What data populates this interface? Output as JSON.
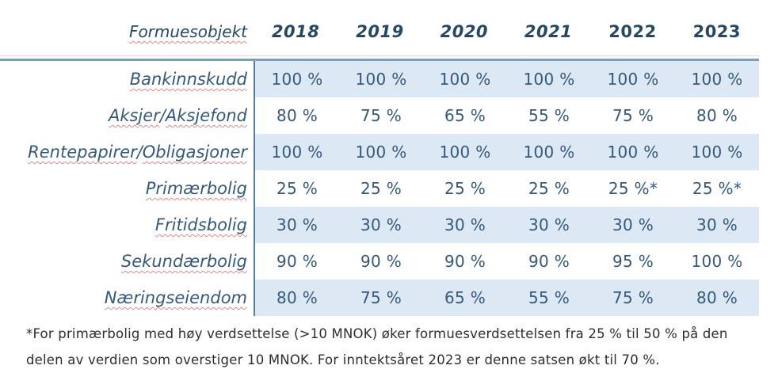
{
  "table": {
    "corner_label": "Formuesobjekt",
    "years": [
      "2018",
      "2019",
      "2020",
      "2021",
      "2022",
      "2023"
    ],
    "rows": [
      {
        "label": "Bankinnskudd",
        "values": [
          "100 %",
          "100 %",
          "100 %",
          "100 %",
          "100 %",
          "100 %"
        ]
      },
      {
        "label": "Aksjer / Aksjefond",
        "values": [
          "80 %",
          "75 %",
          "65 %",
          "55 %",
          "75 %",
          "80 %"
        ]
      },
      {
        "label": "Rentepapirer / Obligasjoner",
        "values": [
          "100 %",
          "100 %",
          "100 %",
          "100 %",
          "100 %",
          "100 %"
        ]
      },
      {
        "label": "Primærbolig",
        "values": [
          "25 %",
          "25 %",
          "25 %",
          "25 %",
          "25 %*",
          "25 %*"
        ]
      },
      {
        "label": "Fritidsbolig",
        "values": [
          "30 %",
          "30 %",
          "30 %",
          "30 %",
          "30 %",
          "30 %"
        ]
      },
      {
        "label": "Sekundærbolig",
        "values": [
          "90 %",
          "90 %",
          "90 %",
          "90 %",
          "95 %",
          "100 %"
        ]
      },
      {
        "label": "Næringseiendom",
        "values": [
          "80 %",
          "75 %",
          "65 %",
          "55 %",
          "75 %",
          "80 %"
        ]
      }
    ]
  },
  "footnote": {
    "line1": "*For primærbolig med høy verdsettelse (>10 MNOK) øker formuesverdsettelsen fra 25 % til 50 % på den",
    "line2": "delen av verdien som overstiger 10 MNOK. For inntektsåret 2023 er denne satsen økt til 70 %."
  },
  "colors": {
    "text": "#35597a",
    "yeartext": "#274860",
    "band": "#dce8f4",
    "rule": "#7b9fb8",
    "divider": "#4d80a3",
    "footnote": "#2d2d2d"
  },
  "chart_data": {
    "type": "table",
    "title": "Formuesobjekt",
    "categories": [
      "2018",
      "2019",
      "2020",
      "2021",
      "2022",
      "2023"
    ],
    "unit": "%",
    "series": [
      {
        "name": "Bankinnskudd",
        "values": [
          100,
          100,
          100,
          100,
          100,
          100
        ]
      },
      {
        "name": "Aksjer / Aksjefond",
        "values": [
          80,
          75,
          65,
          55,
          75,
          80
        ]
      },
      {
        "name": "Rentepapirer / Obligasjoner",
        "values": [
          100,
          100,
          100,
          100,
          100,
          100
        ]
      },
      {
        "name": "Primærbolig",
        "values": [
          25,
          25,
          25,
          25,
          "25*",
          "25*"
        ]
      },
      {
        "name": "Fritidsbolig",
        "values": [
          30,
          30,
          30,
          30,
          30,
          30
        ]
      },
      {
        "name": "Sekundærbolig",
        "values": [
          90,
          90,
          90,
          90,
          95,
          100
        ]
      },
      {
        "name": "Næringseiendom",
        "values": [
          80,
          75,
          65,
          55,
          75,
          80
        ]
      }
    ],
    "annotations": [
      "*For primærbolig med høy verdsettelse (>10 MNOK) øker formuesverdsettelsen fra 25 % til 50 % på den delen av verdien som overstiger 10 MNOK. For inntektsåret 2023 er denne satsen økt til 70 %."
    ],
    "layout_hints": {
      "row_banding": "alternating light blue starting with first data row",
      "label_column_separator": "vertical steel-blue line",
      "header_separator": "horizontal steel-blue rule",
      "italic_year_headers": [
        "2018",
        "2019",
        "2020",
        "2021"
      ]
    }
  }
}
